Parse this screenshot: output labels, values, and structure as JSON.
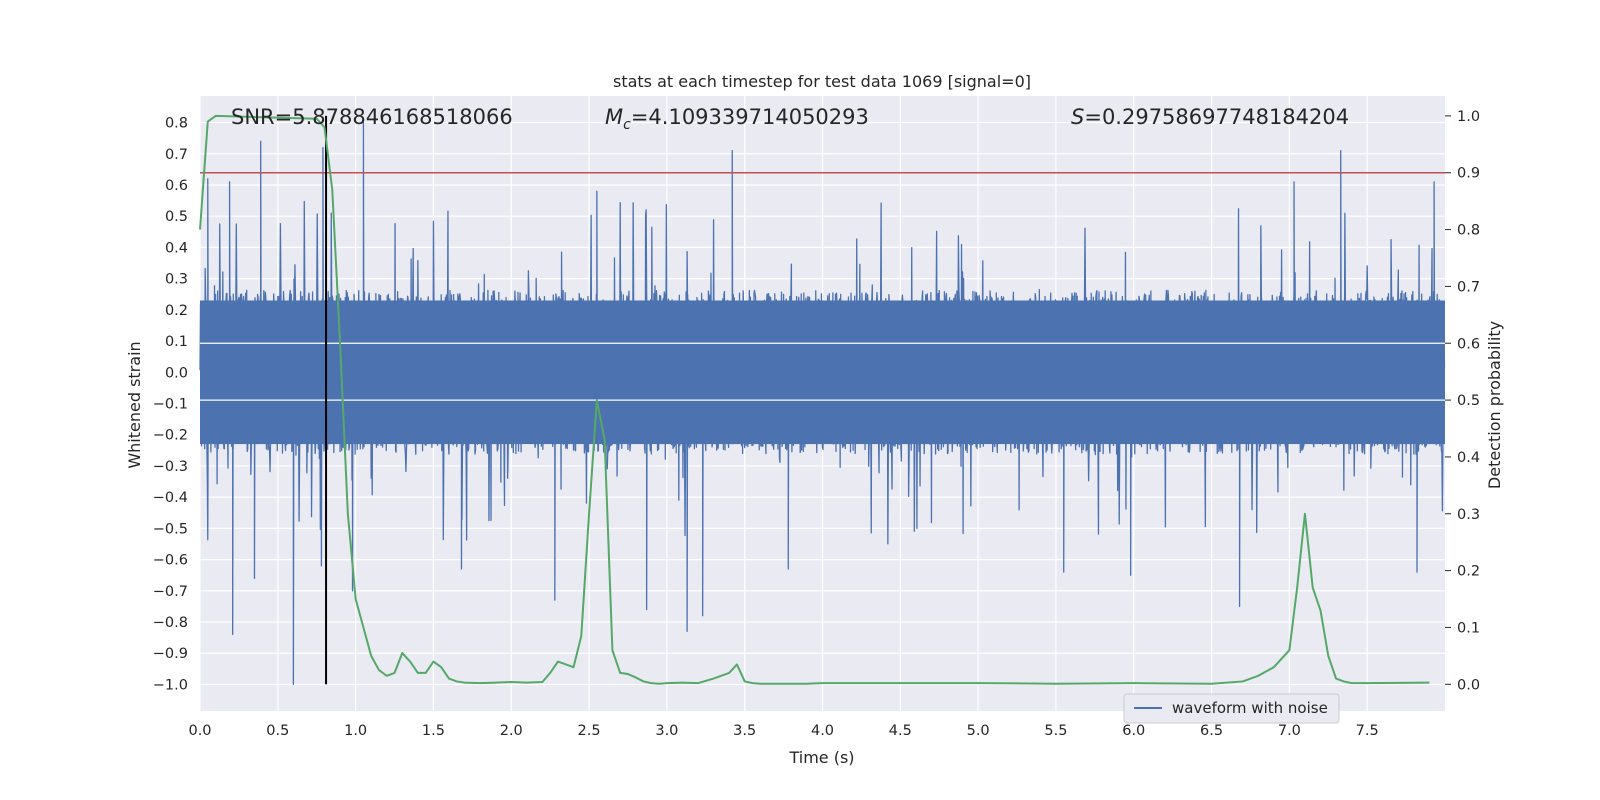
{
  "chart_data": {
    "type": "line",
    "title": "stats at each timestep for test data 1069 [signal=0]",
    "xlabel": "Time (s)",
    "ylabel": "Whitened strain",
    "y2label": "Detection probability",
    "xlim": [
      0.0,
      8.0
    ],
    "ylim": [
      -1.085,
      0.885
    ],
    "y2lim": [
      -0.047,
      1.035
    ],
    "xticks": [
      0.0,
      0.5,
      1.0,
      1.5,
      2.0,
      2.5,
      3.0,
      3.5,
      4.0,
      4.5,
      5.0,
      5.5,
      6.0,
      6.5,
      7.0,
      7.5
    ],
    "xtick_labels": [
      "0.0",
      "0.5",
      "1.0",
      "1.5",
      "2.0",
      "2.5",
      "3.0",
      "3.5",
      "4.0",
      "4.5",
      "5.0",
      "5.5",
      "6.0",
      "6.5",
      "7.0",
      "7.5"
    ],
    "yticks": [
      0.8,
      0.7,
      0.6,
      0.5,
      0.4,
      0.3,
      0.2,
      0.1,
      0.0,
      -0.1,
      -0.2,
      -0.3,
      -0.4,
      -0.5,
      -0.6,
      -0.7,
      -0.8,
      -0.9,
      -1.0
    ],
    "ytick_labels": [
      "0.8",
      "0.7",
      "0.6",
      "0.5",
      "0.4",
      "0.3",
      "0.2",
      "0.1",
      "0.0",
      "−0.1",
      "−0.2",
      "−0.3",
      "−0.4",
      "−0.5",
      "−0.6",
      "−0.7",
      "−0.8",
      "−0.9",
      "−1.0"
    ],
    "y2ticks": [
      1.0,
      0.9,
      0.8,
      0.7,
      0.6,
      0.5,
      0.4,
      0.3,
      0.2,
      0.1,
      0.0
    ],
    "y2tick_labels": [
      "1.0",
      "0.9",
      "0.8",
      "0.7",
      "0.6",
      "0.5",
      "0.4",
      "0.3",
      "0.2",
      "0.1",
      "0.0"
    ],
    "grid": true,
    "legend": {
      "position": "lower-right",
      "entries": [
        "waveform with noise"
      ]
    },
    "annotations": {
      "snr": "SNR=5.878846168518066",
      "mc_symbol": "M",
      "mc_sub": "c",
      "mc_value": "=4.109339714050293",
      "s_symbol": "S",
      "s_value": "=0.29758697748184204"
    },
    "threshold_y2": 0.9,
    "marker_time": 0.81,
    "waveform": {
      "name": "waveform with noise",
      "duration_s": 8.0,
      "core_amplitude": 0.25,
      "spike_peaks": [
        {
          "t": 0.05,
          "v": 0.62
        },
        {
          "t": 0.19,
          "v": 0.61
        },
        {
          "t": 0.39,
          "v": 0.74
        },
        {
          "t": 0.79,
          "v": 0.72
        },
        {
          "t": 1.05,
          "v": 0.8
        },
        {
          "t": 2.55,
          "v": 0.58
        },
        {
          "t": 3.42,
          "v": 0.71
        },
        {
          "t": 7.03,
          "v": 0.61
        },
        {
          "t": 7.33,
          "v": 0.71
        },
        {
          "t": 7.93,
          "v": 0.61
        },
        {
          "t": 0.21,
          "v": -0.84
        },
        {
          "t": 0.6,
          "v": -1.0
        },
        {
          "t": 0.35,
          "v": -0.66
        },
        {
          "t": 0.78,
          "v": -0.62
        },
        {
          "t": 0.98,
          "v": -0.7
        },
        {
          "t": 2.28,
          "v": -0.73
        },
        {
          "t": 2.87,
          "v": -0.76
        },
        {
          "t": 3.13,
          "v": -0.83
        },
        {
          "t": 3.23,
          "v": -0.78
        },
        {
          "t": 6.68,
          "v": -0.75
        },
        {
          "t": 5.98,
          "v": -0.65
        },
        {
          "t": 5.55,
          "v": -0.64
        },
        {
          "t": 3.78,
          "v": -0.63
        },
        {
          "t": 1.68,
          "v": -0.63
        },
        {
          "t": 7.82,
          "v": -0.64
        }
      ]
    },
    "series": [
      {
        "name": "Detection probability",
        "axis": "y2",
        "color": "#55a868",
        "x": [
          0.0,
          0.05,
          0.1,
          0.75,
          0.8,
          0.85,
          0.9,
          0.95,
          1.0,
          1.1,
          1.15,
          1.2,
          1.25,
          1.3,
          1.35,
          1.4,
          1.45,
          1.5,
          1.55,
          1.6,
          1.65,
          1.7,
          1.8,
          1.9,
          2.0,
          2.1,
          2.2,
          2.25,
          2.3,
          2.4,
          2.45,
          2.5,
          2.55,
          2.6,
          2.65,
          2.7,
          2.75,
          2.8,
          2.85,
          2.9,
          2.95,
          3.0,
          3.1,
          3.2,
          3.3,
          3.4,
          3.45,
          3.5,
          3.55,
          3.6,
          3.7,
          3.8,
          3.9,
          4.0,
          4.5,
          5.0,
          5.5,
          6.0,
          6.5,
          6.7,
          6.8,
          6.9,
          7.0,
          7.05,
          7.1,
          7.15,
          7.2,
          7.25,
          7.3,
          7.35,
          7.4,
          7.5,
          7.9
        ],
        "values": [
          0.8,
          0.99,
          1.0,
          0.995,
          0.98,
          0.87,
          0.6,
          0.3,
          0.15,
          0.05,
          0.025,
          0.015,
          0.02,
          0.055,
          0.04,
          0.02,
          0.02,
          0.04,
          0.03,
          0.01,
          0.005,
          0.003,
          0.002,
          0.003,
          0.004,
          0.003,
          0.004,
          0.02,
          0.04,
          0.03,
          0.085,
          0.3,
          0.5,
          0.43,
          0.06,
          0.02,
          0.018,
          0.012,
          0.005,
          0.002,
          0.001,
          0.002,
          0.003,
          0.002,
          0.01,
          0.02,
          0.035,
          0.005,
          0.002,
          0.001,
          0.001,
          0.001,
          0.001,
          0.002,
          0.002,
          0.002,
          0.001,
          0.002,
          0.001,
          0.005,
          0.015,
          0.03,
          0.06,
          0.17,
          0.3,
          0.17,
          0.13,
          0.05,
          0.01,
          0.005,
          0.002,
          0.002,
          0.003
        ]
      }
    ]
  }
}
